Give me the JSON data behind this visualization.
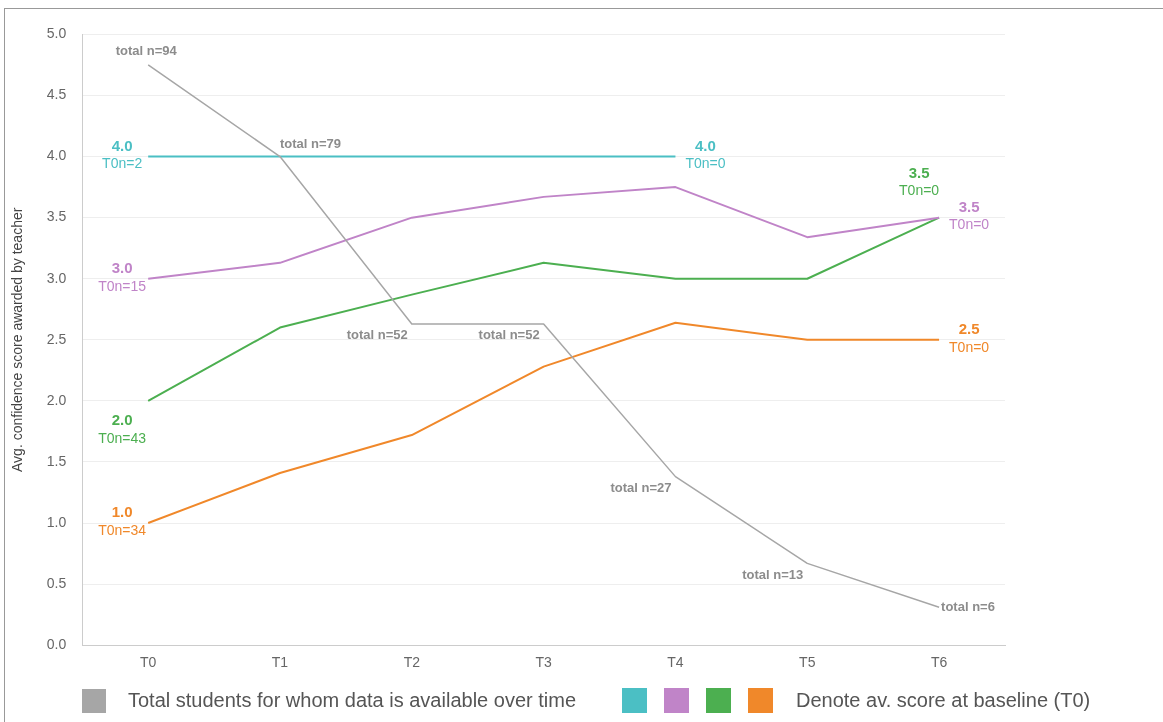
{
  "chart_data": {
    "type": "line",
    "ylabel": "Avg. confidence score awarded by teacher",
    "categories": [
      "T0",
      "T1",
      "T2",
      "T3",
      "T4",
      "T5",
      "T6"
    ],
    "ylim": [
      0,
      5
    ],
    "yticks": [
      {
        "value": 0,
        "label": "0.0"
      },
      {
        "value": 0.5,
        "label": "0.5"
      },
      {
        "value": 1,
        "label": "1.0"
      },
      {
        "value": 1.5,
        "label": "1.5"
      },
      {
        "value": 2,
        "label": "2.0"
      },
      {
        "value": 2.5,
        "label": "2.5"
      },
      {
        "value": 3,
        "label": "3.0"
      },
      {
        "value": 3.5,
        "label": "3.5"
      },
      {
        "value": 4,
        "label": "4.0"
      },
      {
        "value": 4.5,
        "label": "4.5"
      },
      {
        "value": 5,
        "label": "5.0"
      }
    ],
    "grid": "y",
    "legend": "bottom",
    "marker": "none",
    "line_style": "solid",
    "annotations": [
      "Denote av. score at baseline (T0)",
      {
        "text": "total n=94",
        "x": "T0",
        "y": 4.75
      },
      {
        "text": "total n=79",
        "x": "T1",
        "y": 4.0
      },
      {
        "text": "total n=52",
        "x": "T2",
        "y": 2.63
      },
      {
        "text": "total n=52",
        "x": "T3",
        "y": 2.63
      },
      {
        "text": "total n=27",
        "x": "T4",
        "y": 1.38
      },
      {
        "text": "total n=13",
        "x": "T5",
        "y": 0.67
      },
      {
        "text": "total n=6",
        "x": "T6",
        "y": 0.31
      }
    ],
    "series": [
      {
        "name": "Total students for whom data is available over time",
        "color": "#a6a6a6",
        "values": [
          4.75,
          4.0,
          2.63,
          2.63,
          1.38,
          0.67,
          0.31
        ]
      },
      {
        "color": "#4bbfc4",
        "values": [
          4.0,
          4.0,
          4.0,
          4.0,
          4.0,
          null,
          null
        ],
        "value_labels": [
          "4.0\nT0n=2",
          null,
          null,
          null,
          "4.0\nT0n=0",
          null,
          null
        ]
      },
      {
        "color": "#c084c8",
        "values": [
          3.0,
          3.13,
          3.5,
          3.67,
          3.75,
          3.34,
          3.5
        ],
        "value_labels": [
          "3.0\nT0n=15",
          null,
          null,
          null,
          null,
          null,
          "3.5\nT0n=0"
        ]
      },
      {
        "color": "#4caf50",
        "values": [
          2.0,
          2.6,
          2.87,
          3.13,
          3.0,
          3.0,
          3.5
        ],
        "value_labels": [
          "2.0\nT0n=43",
          null,
          null,
          null,
          null,
          null,
          "3.5\nT0n=0"
        ]
      },
      {
        "color": "#f0882a",
        "values": [
          1.0,
          1.41,
          1.72,
          2.28,
          2.64,
          2.5,
          2.5
        ],
        "value_labels": [
          "1.0\nT0n=34",
          null,
          null,
          null,
          null,
          null,
          "2.5\nT0n=0"
        ]
      }
    ]
  }
}
